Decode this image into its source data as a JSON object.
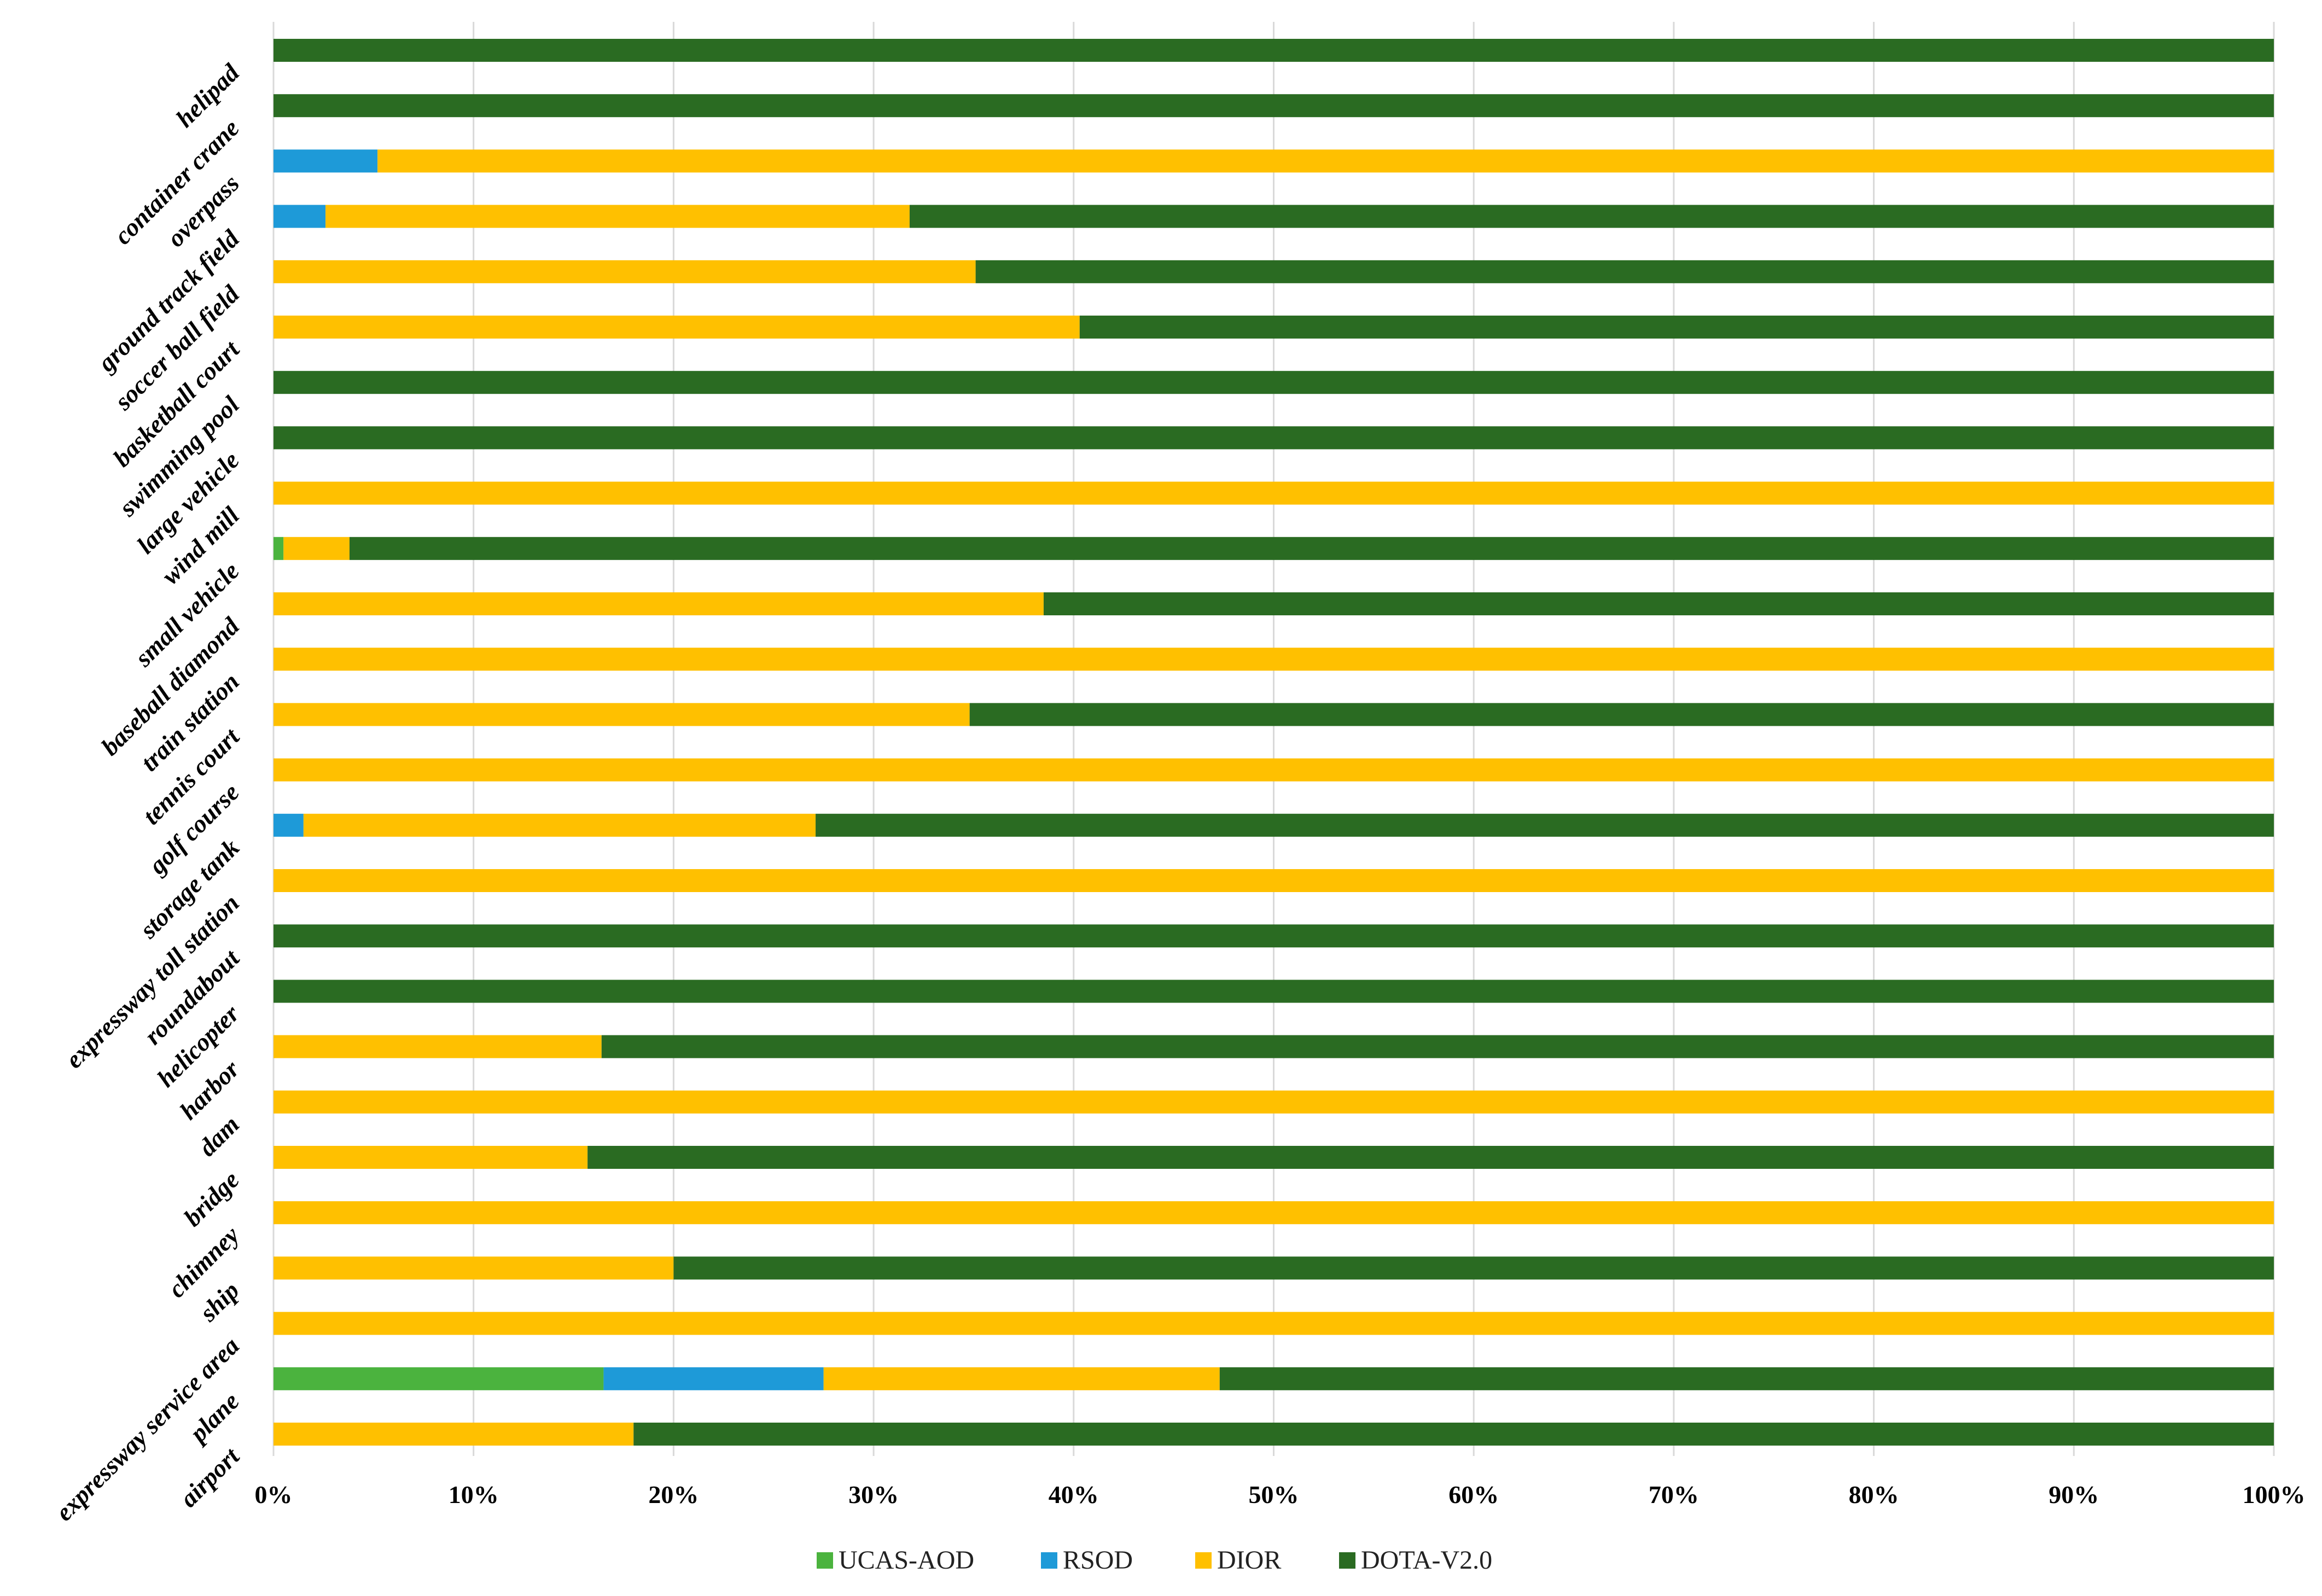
{
  "chart_data": {
    "type": "bar",
    "orientation": "horizontal",
    "stacked": "percent",
    "title": "",
    "xlabel": "",
    "ylabel": "",
    "xlim": [
      0,
      100
    ],
    "x_ticks": [
      "0%",
      "10%",
      "20%",
      "30%",
      "40%",
      "50%",
      "60%",
      "70%",
      "80%",
      "90%",
      "100%"
    ],
    "grid": true,
    "legend_position": "bottom",
    "categories": [
      "helipad",
      "container crane",
      "overpass",
      "ground track field",
      "soccer ball field",
      "basketball court",
      "swimming pool",
      "large vehicle",
      "wind mill",
      "small vehicle",
      "baseball diamond",
      "train station",
      "tennis court",
      "golf course",
      "storage tank",
      "expressway toll station",
      "roundabout",
      "helicopter",
      "harbor",
      "dam",
      "bridge",
      "chimney",
      "ship",
      "expressway service area",
      "plane",
      "airport"
    ],
    "series": [
      {
        "name": "UCAS-AOD",
        "color": "#4bb33e",
        "values": [
          0,
          0,
          0,
          0,
          0,
          0,
          0,
          0,
          0,
          0.5,
          0,
          0,
          0,
          0,
          0,
          0,
          0,
          0,
          0,
          0,
          0,
          0,
          0,
          0,
          16.5,
          0
        ]
      },
      {
        "name": "RSOD",
        "color": "#1e9ad8",
        "values": [
          0,
          0,
          5.2,
          2.6,
          0,
          0,
          0,
          0,
          0,
          0,
          0,
          0,
          0,
          0,
          1.5,
          0,
          0,
          0,
          0,
          0,
          0,
          0,
          0,
          0,
          11.0,
          0
        ]
      },
      {
        "name": "DIOR",
        "color": "#ffc000",
        "values": [
          0,
          0,
          94.8,
          29.2,
          35.1,
          40.3,
          0,
          0,
          100,
          3.3,
          38.5,
          100,
          34.8,
          100,
          25.6,
          100,
          0,
          0,
          16.4,
          100,
          15.7,
          100,
          20.0,
          100,
          19.8,
          18.0
        ]
      },
      {
        "name": "DOTA-V2.0",
        "color": "#2a6b22",
        "values": [
          100,
          100,
          0,
          68.2,
          64.9,
          59.7,
          100,
          100,
          0,
          96.2,
          61.5,
          0,
          65.2,
          0,
          72.9,
          0,
          100,
          100,
          83.6,
          0,
          84.3,
          0,
          80.0,
          0,
          52.7,
          82.0
        ]
      }
    ]
  }
}
